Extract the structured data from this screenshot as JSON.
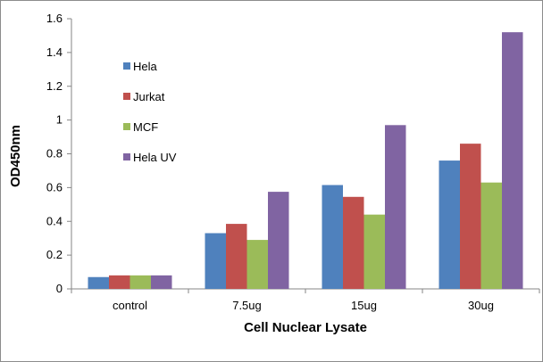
{
  "chart_data": {
    "type": "bar",
    "title": "",
    "xlabel": "Cell Nuclear Lysate",
    "ylabel": "OD450nm",
    "categories": [
      "control",
      "7.5ug",
      "15ug",
      "30ug"
    ],
    "ylim": [
      0,
      1.6
    ],
    "yticks": [
      0,
      0.2,
      0.4,
      0.6,
      0.8,
      1,
      1.2,
      1.4,
      1.6
    ],
    "ytick_labels": [
      "0",
      "0.2",
      "0.4",
      "0.6",
      "0.8",
      "1",
      "1.2",
      "1.4",
      "1.6"
    ],
    "grid": false,
    "legend_position": "top-left",
    "series": [
      {
        "name": "Hela",
        "color": "#4f81bd",
        "values": [
          0.07,
          0.33,
          0.615,
          0.76
        ]
      },
      {
        "name": "Jurkat",
        "color": "#c0504d",
        "values": [
          0.08,
          0.385,
          0.545,
          0.86
        ]
      },
      {
        "name": "MCF",
        "color": "#9bbb59",
        "values": [
          0.08,
          0.29,
          0.44,
          0.63
        ]
      },
      {
        "name": "Hela UV",
        "color": "#8064a2",
        "values": [
          0.08,
          0.575,
          0.97,
          1.52
        ]
      }
    ]
  }
}
